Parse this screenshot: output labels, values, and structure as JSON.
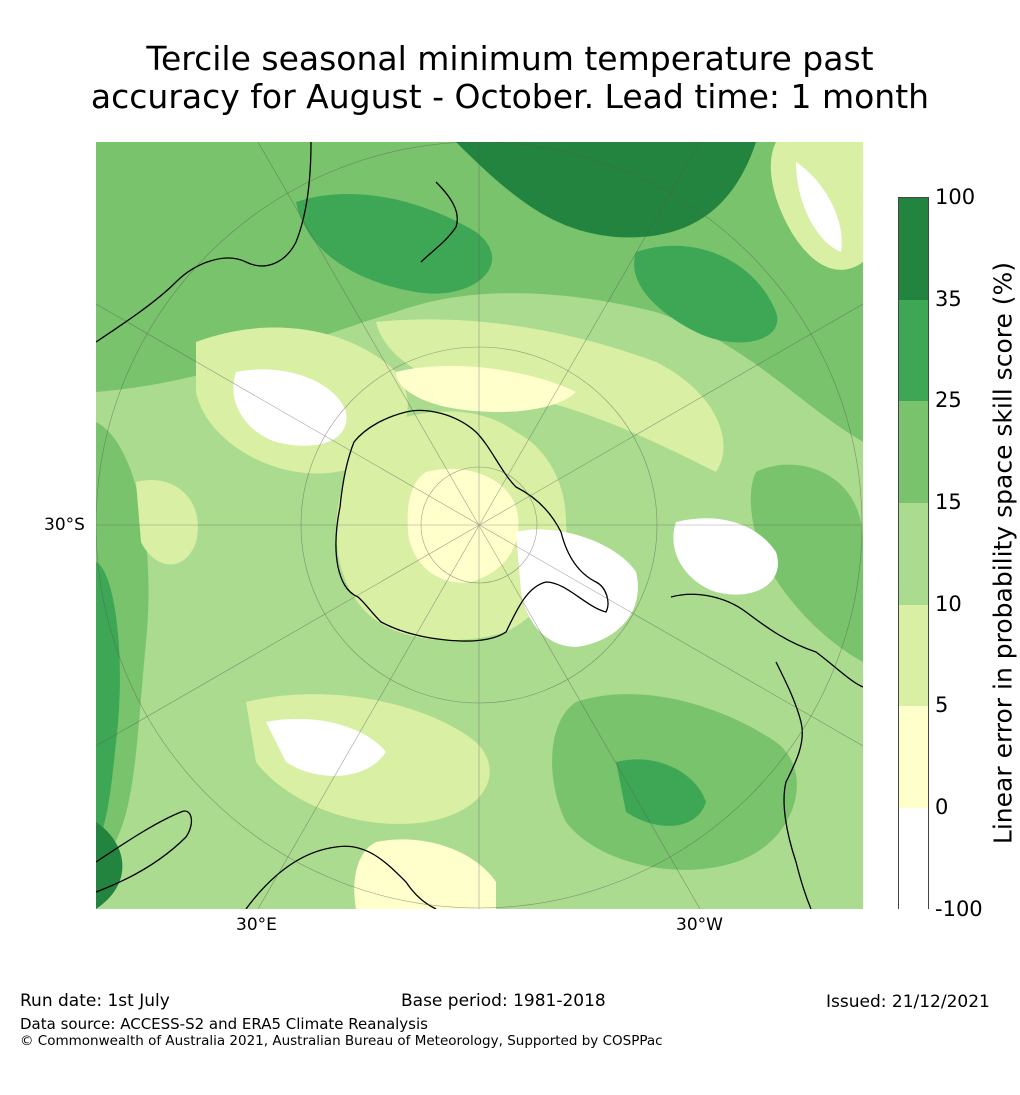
{
  "title": {
    "line1": "Tercile seasonal minimum temperature past",
    "line2": "accuracy for August - October. Lead time: 1 month"
  },
  "map": {
    "projection": "south polar stereographic",
    "lat_label": "30°S",
    "lon_labels": [
      "30°E",
      "30°W"
    ]
  },
  "colorbar": {
    "label": "Linear error in probability space skill score (%)",
    "ticks": [
      "100",
      "35",
      "25",
      "15",
      "10",
      "5",
      "0",
      "-100"
    ],
    "colors": [
      "#23843f",
      "#3ea756",
      "#78c36b",
      "#aadb8e",
      "#d8efa4",
      "#ffffcc",
      "#ffffff"
    ]
  },
  "footer": {
    "run_date": "Run date: 1st July",
    "base_period": "Base period: 1981-2018",
    "issued": "Issued: 21/12/2021",
    "data_source": "Data source: ACCESS-S2 and ERA5 Climate Reanalysis",
    "copyright": "© Commonwealth of Australia 2021, Australian Bureau of Meteorology, Supported by COSPPac"
  }
}
